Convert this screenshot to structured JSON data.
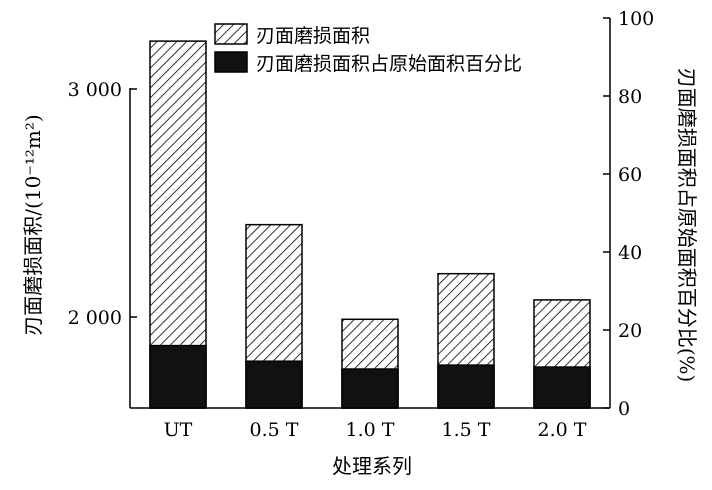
{
  "chart_data": {
    "type": "bar",
    "categories": [
      "UT",
      "0.5 T",
      "1.0 T",
      "1.5 T",
      "2.0 T"
    ],
    "xlabel": "处理系列",
    "ylabel_left": "刃面磨损面积/(10⁻¹²m²)",
    "ylabel_right": "刃面磨损面积占原始面积百分比(%)",
    "left_axis": {
      "ticks": [
        2000,
        3000
      ],
      "tick_labels": [
        "2 000",
        "3 000"
      ]
    },
    "right_axis": {
      "range": [
        0,
        100
      ],
      "ticks": [
        0,
        20,
        40,
        60,
        80,
        100
      ],
      "tick_labels": [
        "0",
        "20",
        "40",
        "60",
        "80",
        "100"
      ]
    },
    "series": [
      {
        "name": "刃面磨损面积",
        "axis": "left",
        "pattern": "hatched",
        "values": [
          3210,
          2405,
          1990,
          2190,
          2075
        ]
      },
      {
        "name": "刃面磨损面积占原始面积百分比",
        "axis": "right",
        "color": "#111111",
        "values": [
          16,
          12,
          10,
          11,
          10.5
        ]
      }
    ],
    "legend_position": "top"
  }
}
